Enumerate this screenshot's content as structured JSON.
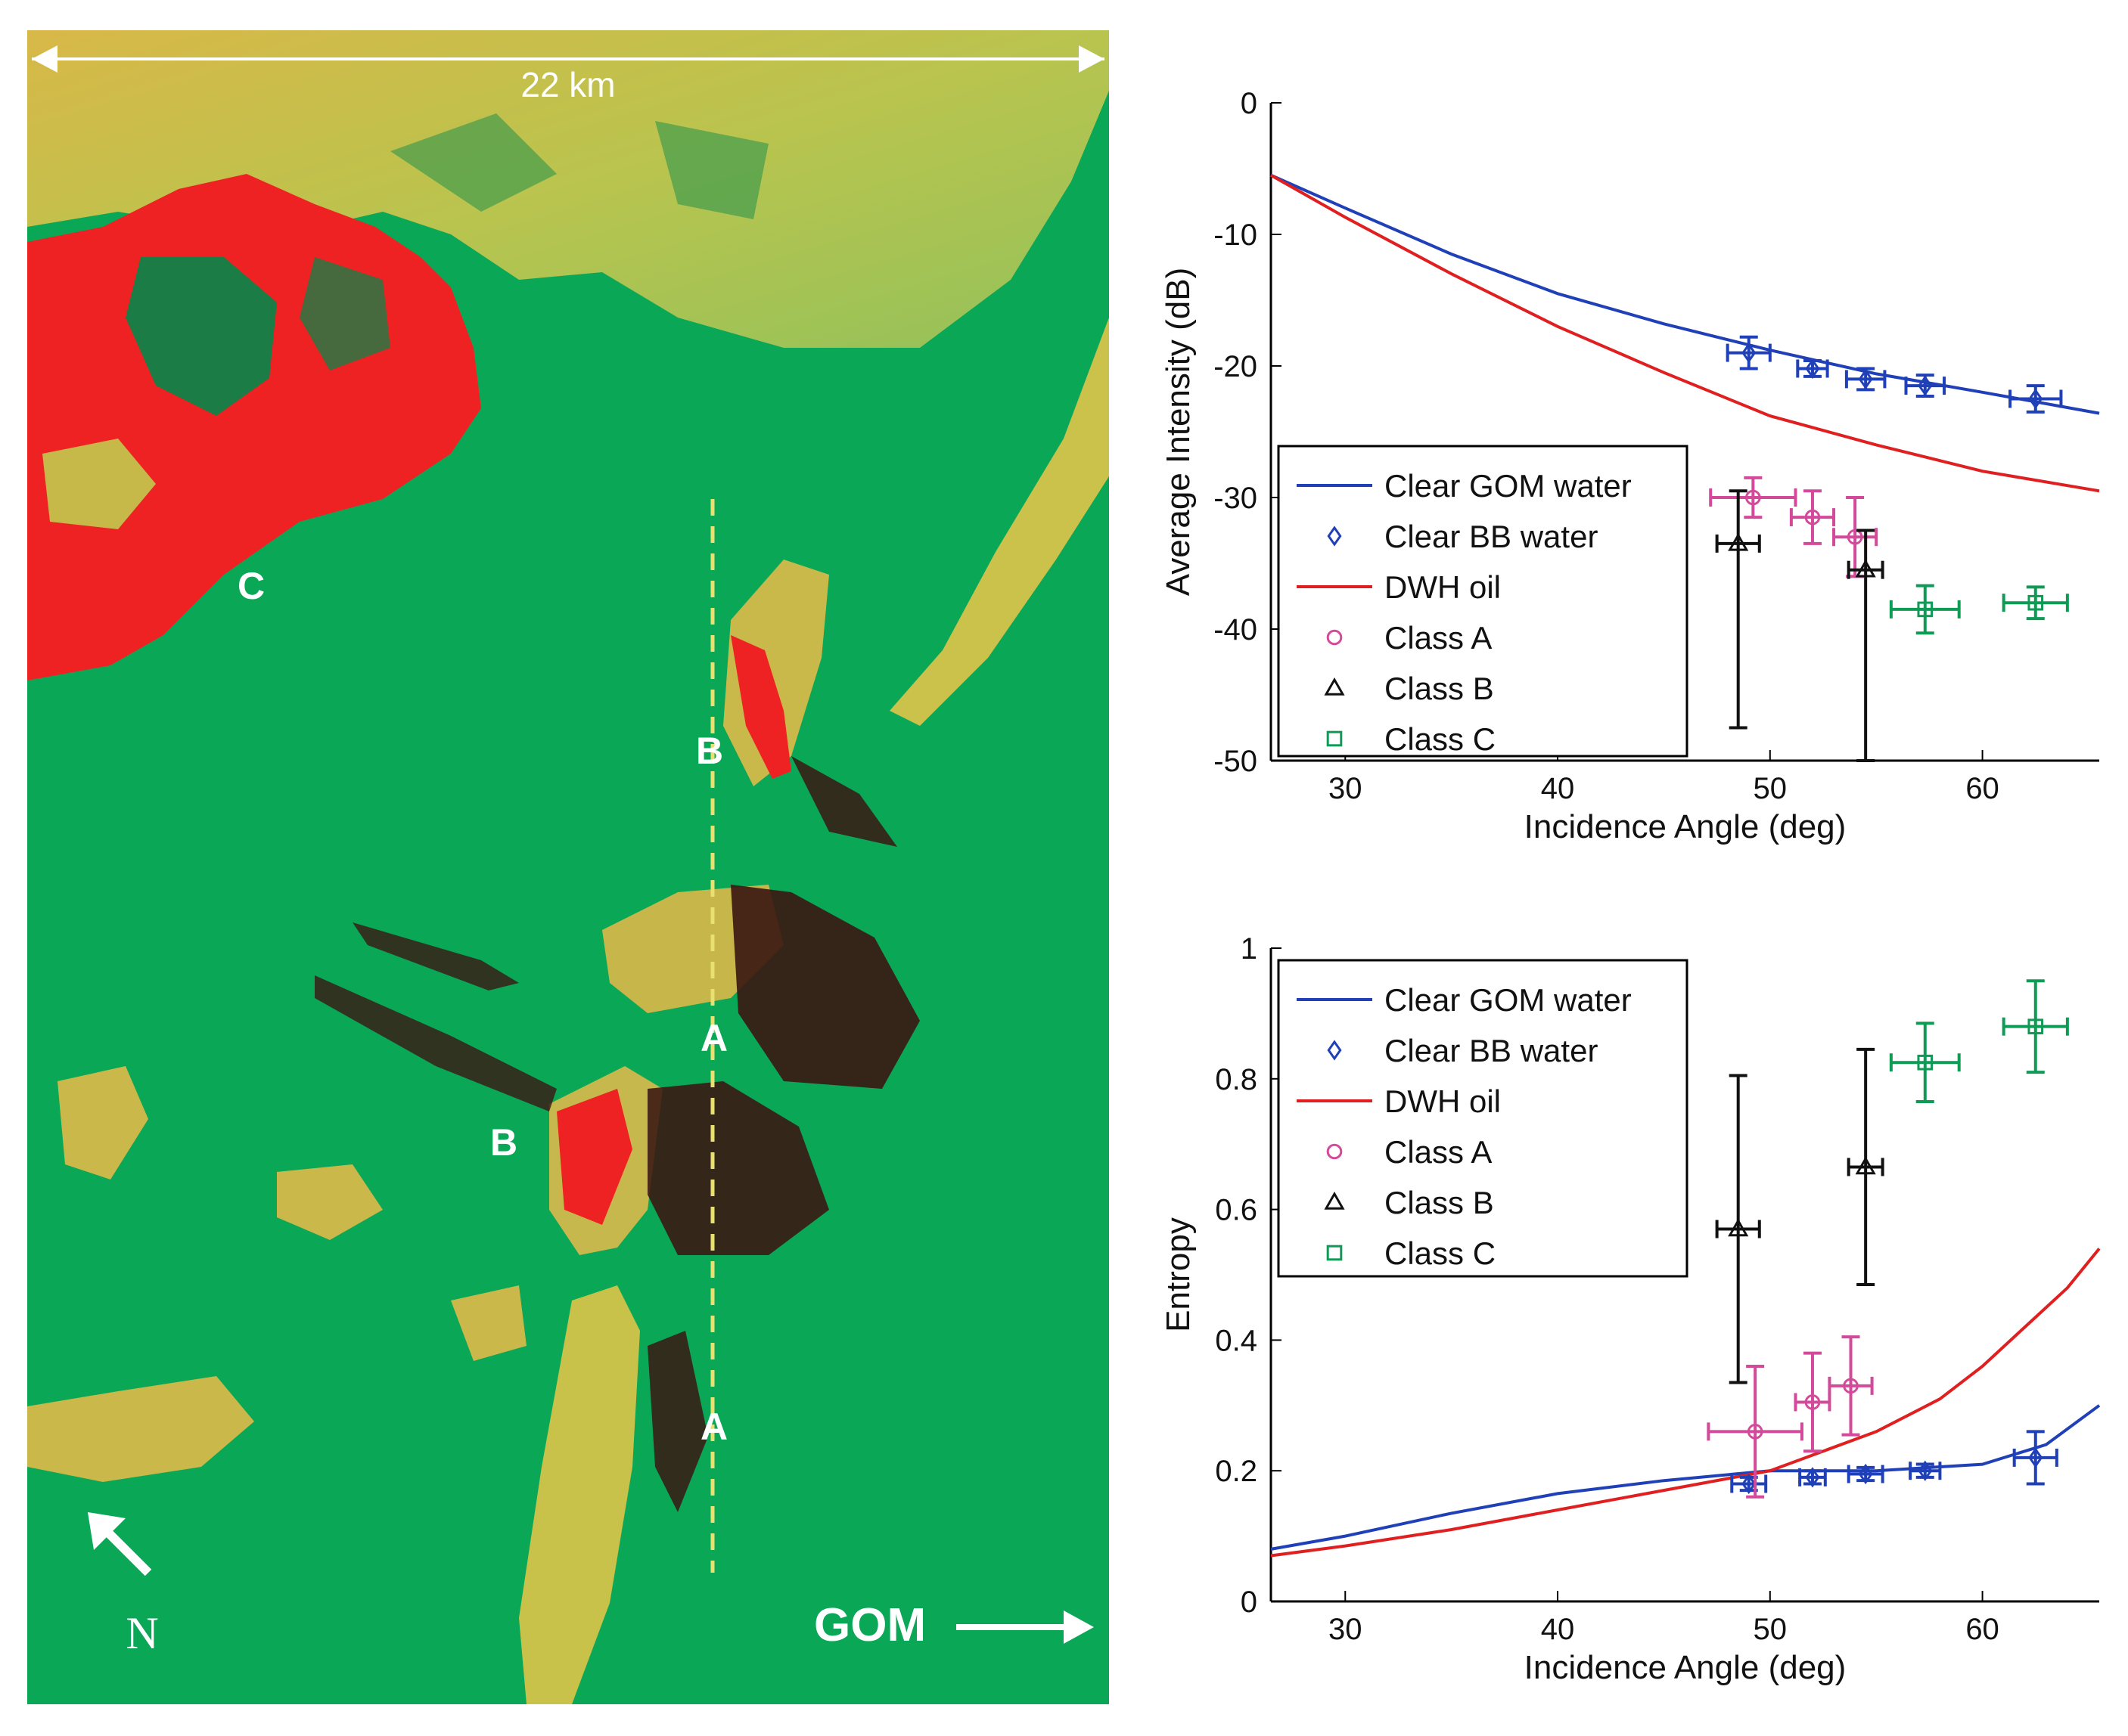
{
  "map": {
    "scale_label": "22 km",
    "north_label": "N",
    "gom_label": "GOM",
    "region_labels": [
      "C",
      "B",
      "B",
      "A",
      "A"
    ],
    "colors": {
      "water": "#0aa757",
      "land": "#c9c24a",
      "oil_thick": "#ee2222",
      "oil_dark": "#3a1612",
      "transect": "#e8e070"
    }
  },
  "legend": {
    "entries": [
      {
        "label": "Clear GOM water",
        "marker": "line",
        "color": "#2040b8"
      },
      {
        "label": "Clear BB water",
        "marker": "diamond",
        "color": "#2040b8"
      },
      {
        "label": "DWH oil",
        "marker": "line",
        "color": "#e02020"
      },
      {
        "label": "Class A",
        "marker": "circle",
        "color": "#d44a9a"
      },
      {
        "label": "Class B",
        "marker": "triangle",
        "color": "#111111"
      },
      {
        "label": "Class C",
        "marker": "square",
        "color": "#0f9a55"
      }
    ]
  },
  "chart_data": [
    {
      "type": "line",
      "title": "",
      "xlabel": "Incidence Angle (deg)",
      "ylabel": "Average Intensity (dB)",
      "xlim": [
        26.5,
        65.5
      ],
      "ylim": [
        -50,
        0
      ],
      "xticks": [
        30,
        40,
        50,
        60
      ],
      "yticks": [
        0,
        -10,
        -20,
        -30,
        -40,
        -50
      ],
      "series": [
        {
          "name": "Clear GOM water",
          "kind": "line",
          "color": "#2040b8",
          "x": [
            26.5,
            30,
            35,
            40,
            45,
            50,
            55,
            60,
            65.5
          ],
          "y": [
            -5.5,
            -8.0,
            -11.5,
            -14.5,
            -16.8,
            -18.8,
            -20.6,
            -22.0,
            -23.6
          ]
        },
        {
          "name": "DWH oil",
          "kind": "line",
          "color": "#e02020",
          "x": [
            26.5,
            30,
            35,
            40,
            45,
            50,
            55,
            60,
            65.5
          ],
          "y": [
            -5.5,
            -8.7,
            -13.0,
            -17.0,
            -20.5,
            -23.8,
            -26.0,
            -28.0,
            -29.5
          ]
        },
        {
          "name": "Clear BB water",
          "kind": "errorbar",
          "marker": "diamond",
          "color": "#2040b8",
          "x": [
            49.0,
            52.0,
            54.5,
            57.3,
            62.5
          ],
          "y": [
            -19.0,
            -20.2,
            -21.0,
            -21.5,
            -22.5
          ],
          "xerr": [
            1.0,
            0.7,
            0.9,
            0.9,
            1.2
          ],
          "yerr": [
            1.2,
            0.6,
            0.8,
            0.8,
            1.0
          ]
        },
        {
          "name": "Class A",
          "kind": "errorbar",
          "marker": "circle",
          "color": "#d44a9a",
          "x": [
            49.2,
            52.0,
            54.0
          ],
          "y": [
            -30.0,
            -31.5,
            -33.0
          ],
          "xerr": [
            2.0,
            1.0,
            1.0
          ],
          "yerr": [
            1.5,
            2.0,
            3.0
          ]
        },
        {
          "name": "Class B",
          "kind": "errorbar",
          "marker": "triangle",
          "color": "#111111",
          "x": [
            48.5,
            54.5
          ],
          "y": [
            -33.5,
            -35.5
          ],
          "xerr": [
            1.0,
            0.8
          ],
          "yerr": [
            4.0,
            3.0
          ],
          "yerr_lower": [
            14.0,
            14.5
          ]
        },
        {
          "name": "Class C",
          "kind": "errorbar",
          "marker": "square",
          "color": "#0f9a55",
          "x": [
            57.3,
            62.5
          ],
          "y": [
            -38.5,
            -38.0
          ],
          "xerr": [
            1.6,
            1.5
          ],
          "yerr": [
            1.8,
            1.2
          ]
        }
      ]
    },
    {
      "type": "line",
      "title": "",
      "xlabel": "Incidence Angle (deg)",
      "ylabel": "Entropy",
      "xlim": [
        26.5,
        65.5
      ],
      "ylim": [
        0,
        1
      ],
      "xticks": [
        30,
        40,
        50,
        60
      ],
      "yticks": [
        0,
        0.2,
        0.4,
        0.6,
        0.8,
        1
      ],
      "series": [
        {
          "name": "Clear GOM water",
          "kind": "line",
          "color": "#2040b8",
          "x": [
            26.5,
            30,
            35,
            40,
            45,
            50,
            55,
            60,
            63,
            65.5
          ],
          "y": [
            0.08,
            0.1,
            0.135,
            0.165,
            0.185,
            0.2,
            0.2,
            0.21,
            0.24,
            0.3
          ]
        },
        {
          "name": "DWH oil",
          "kind": "line",
          "color": "#e02020",
          "x": [
            26.5,
            30,
            35,
            40,
            45,
            50,
            55,
            58,
            60,
            62,
            64,
            65.5
          ],
          "y": [
            0.07,
            0.085,
            0.11,
            0.14,
            0.17,
            0.2,
            0.26,
            0.31,
            0.36,
            0.42,
            0.48,
            0.54
          ]
        },
        {
          "name": "Clear BB water",
          "kind": "errorbar",
          "marker": "diamond",
          "color": "#2040b8",
          "x": [
            49.0,
            52.0,
            54.5,
            57.3,
            62.5
          ],
          "y": [
            0.18,
            0.19,
            0.195,
            0.2,
            0.22
          ],
          "xerr": [
            0.8,
            0.6,
            0.8,
            0.7,
            1.0
          ],
          "yerr": [
            0.01,
            0.01,
            0.01,
            0.01,
            0.04
          ]
        },
        {
          "name": "Class A",
          "kind": "errorbar",
          "marker": "circle",
          "color": "#d44a9a",
          "x": [
            49.3,
            52.0,
            53.8
          ],
          "y": [
            0.26,
            0.305,
            0.33
          ],
          "xerr": [
            2.2,
            0.8,
            1.0
          ],
          "yerr": [
            0.1,
            0.075,
            0.075
          ]
        },
        {
          "name": "Class B",
          "kind": "errorbar",
          "marker": "triangle",
          "color": "#111111",
          "x": [
            48.5,
            54.5
          ],
          "y": [
            0.57,
            0.665
          ],
          "xerr": [
            1.0,
            0.8
          ],
          "yerr": [
            0.235,
            0.18
          ]
        },
        {
          "name": "Class C",
          "kind": "errorbar",
          "marker": "square",
          "color": "#0f9a55",
          "x": [
            57.3,
            62.5
          ],
          "y": [
            0.825,
            0.88
          ],
          "xerr": [
            1.6,
            1.5
          ],
          "yerr": [
            0.06,
            0.07
          ]
        }
      ]
    }
  ]
}
